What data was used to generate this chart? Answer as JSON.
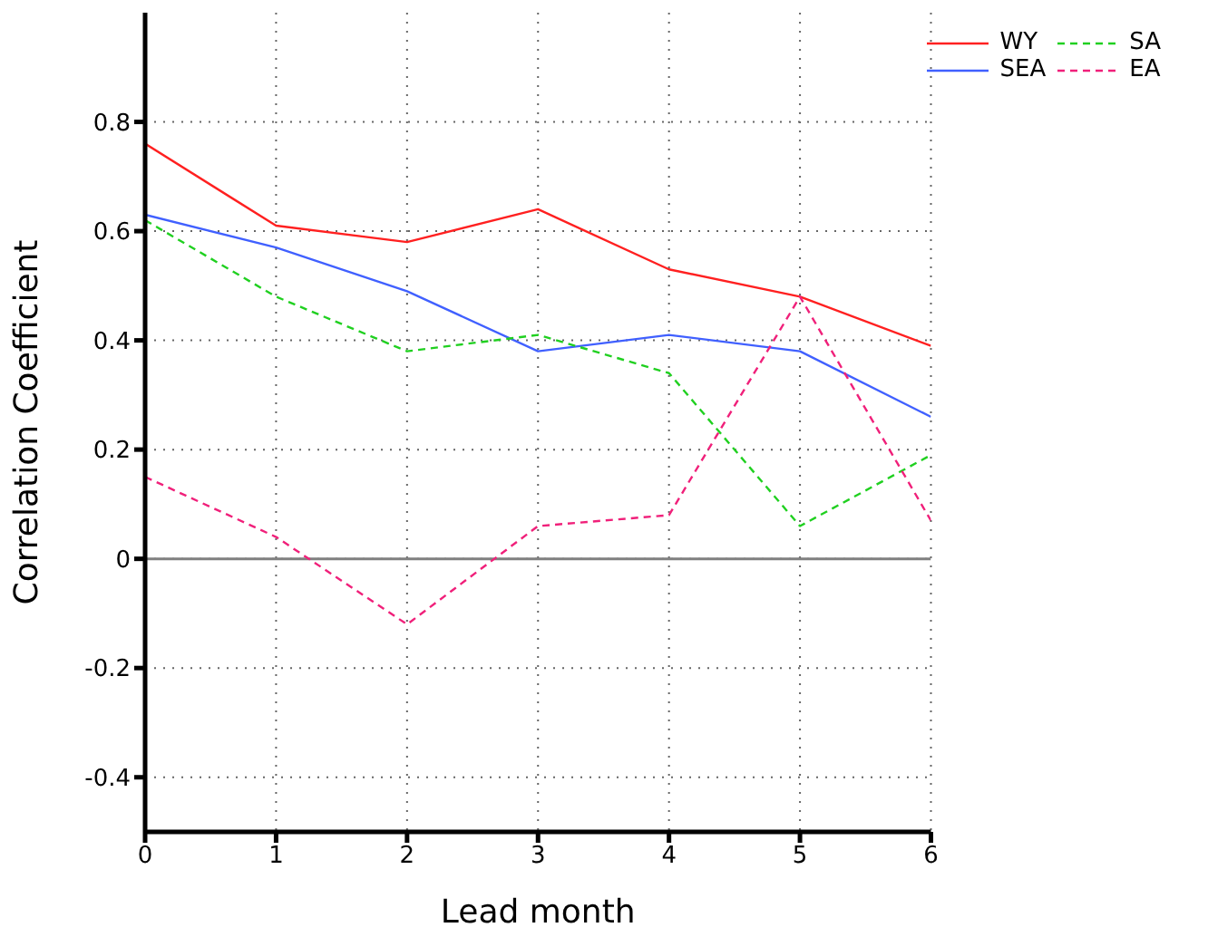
{
  "chart_data": {
    "type": "line",
    "xlabel": "Lead month",
    "ylabel": "Correlation Coefficient",
    "x": [
      0,
      1,
      2,
      3,
      4,
      5,
      6
    ],
    "series": [
      {
        "name": "WY",
        "color": "#ff2020",
        "line_style": "solid",
        "values": [
          0.76,
          0.61,
          0.58,
          0.64,
          0.53,
          0.48,
          0.39
        ]
      },
      {
        "name": "SEA",
        "color": "#4060ff",
        "line_style": "solid",
        "values": [
          0.63,
          0.57,
          0.49,
          0.38,
          0.41,
          0.38,
          0.26
        ]
      },
      {
        "name": "SA",
        "color": "#20d020",
        "line_style": "dashed",
        "values": [
          0.62,
          0.48,
          0.38,
          0.41,
          0.34,
          0.06,
          0.19
        ]
      },
      {
        "name": "EA",
        "color": "#f0207a",
        "line_style": "dashed",
        "values": [
          0.15,
          0.04,
          -0.12,
          0.06,
          0.08,
          0.48,
          0.07
        ]
      }
    ],
    "xlim": [
      0,
      6
    ],
    "xticks": [
      0,
      1,
      2,
      3,
      4,
      5,
      6
    ],
    "ylim": [
      -0.5,
      1.0
    ],
    "yticks": [
      -0.4,
      -0.2,
      0,
      {
        "value": 0.2,
        "label": "0.2"
      },
      0.4,
      0.6,
      0.8
    ],
    "ref_lines": [
      {
        "axis": "y",
        "value": 0,
        "color": "#808080",
        "line_style": "solid"
      }
    ],
    "grid": true,
    "legend": "top right",
    "marker": "none"
  }
}
